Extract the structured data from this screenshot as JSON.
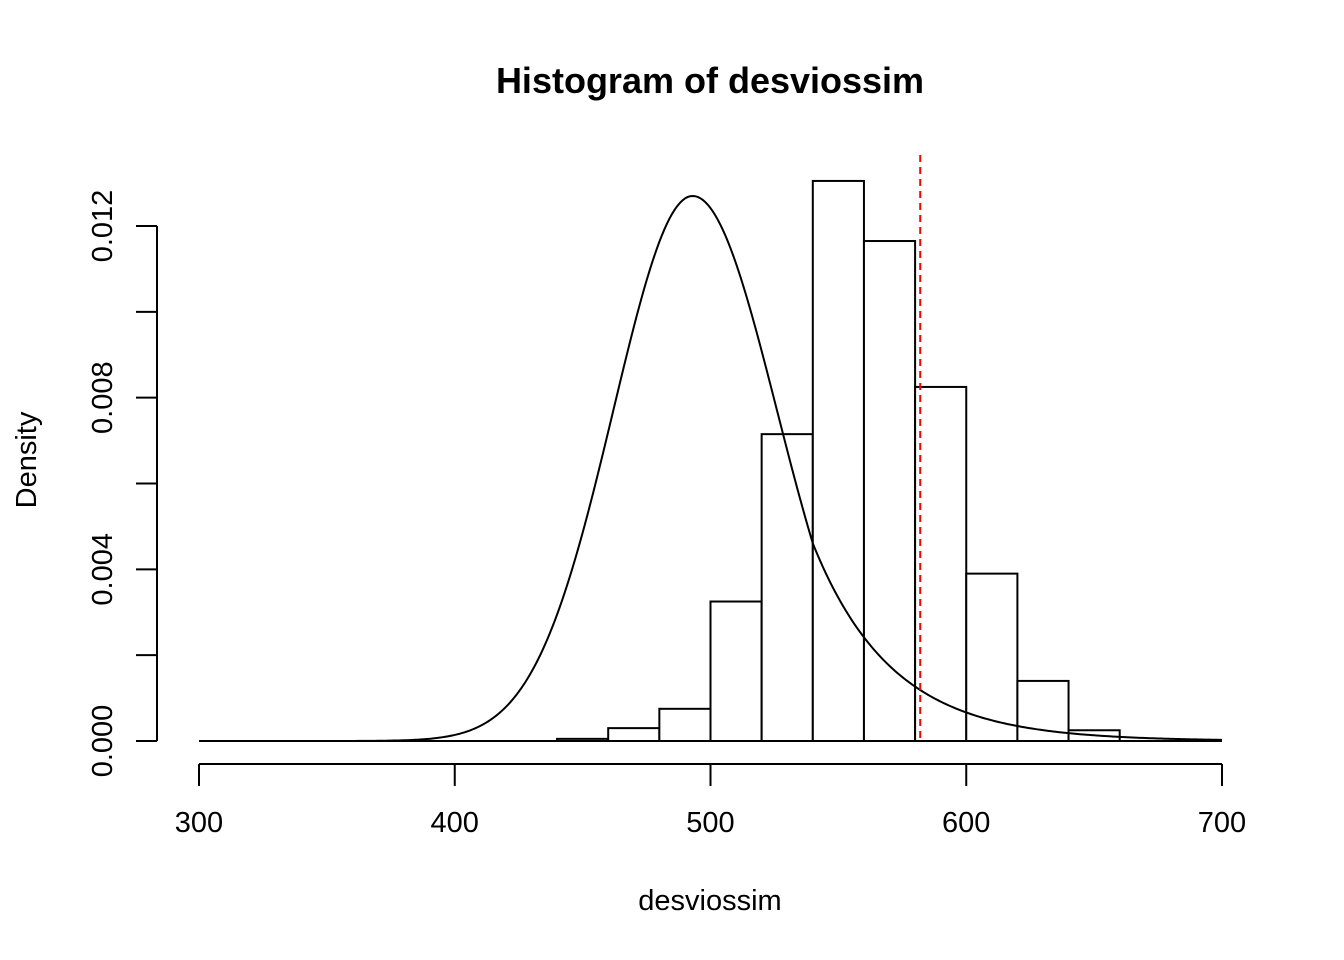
{
  "chart_data": {
    "type": "bar",
    "title": "Histogram of desviossim",
    "xlabel": "desviossim",
    "ylabel": "Density",
    "xlim": [
      300,
      700
    ],
    "ylim": [
      0,
      0.013
    ],
    "x_ticks": [
      "300",
      "400",
      "500",
      "600",
      "700"
    ],
    "y_ticks": [
      "0.000",
      "0.004",
      "0.008",
      "0.012"
    ],
    "bins": [
      {
        "from": 440,
        "to": 460,
        "density": 5e-05
      },
      {
        "from": 460,
        "to": 480,
        "density": 0.0003
      },
      {
        "from": 480,
        "to": 500,
        "density": 0.00075
      },
      {
        "from": 500,
        "to": 520,
        "density": 0.00325
      },
      {
        "from": 520,
        "to": 540,
        "density": 0.00715
      },
      {
        "from": 540,
        "to": 560,
        "density": 0.01305
      },
      {
        "from": 560,
        "to": 580,
        "density": 0.01165
      },
      {
        "from": 580,
        "to": 600,
        "density": 0.00825
      },
      {
        "from": 600,
        "to": 620,
        "density": 0.0039
      },
      {
        "from": 620,
        "to": 640,
        "density": 0.0014
      },
      {
        "from": 640,
        "to": 660,
        "density": 0.00025
      }
    ],
    "density_curve": {
      "color": "#000000",
      "x_range": [
        300,
        700
      ],
      "peak_x": 493,
      "peak_density": 0.0127,
      "left_sd": 31,
      "right_sd": 33,
      "right_tail_kink_x": 540,
      "right_tail_scale": 31
    },
    "reference_line": {
      "x": 582,
      "color": "#ff0000",
      "style": "dashed"
    }
  }
}
